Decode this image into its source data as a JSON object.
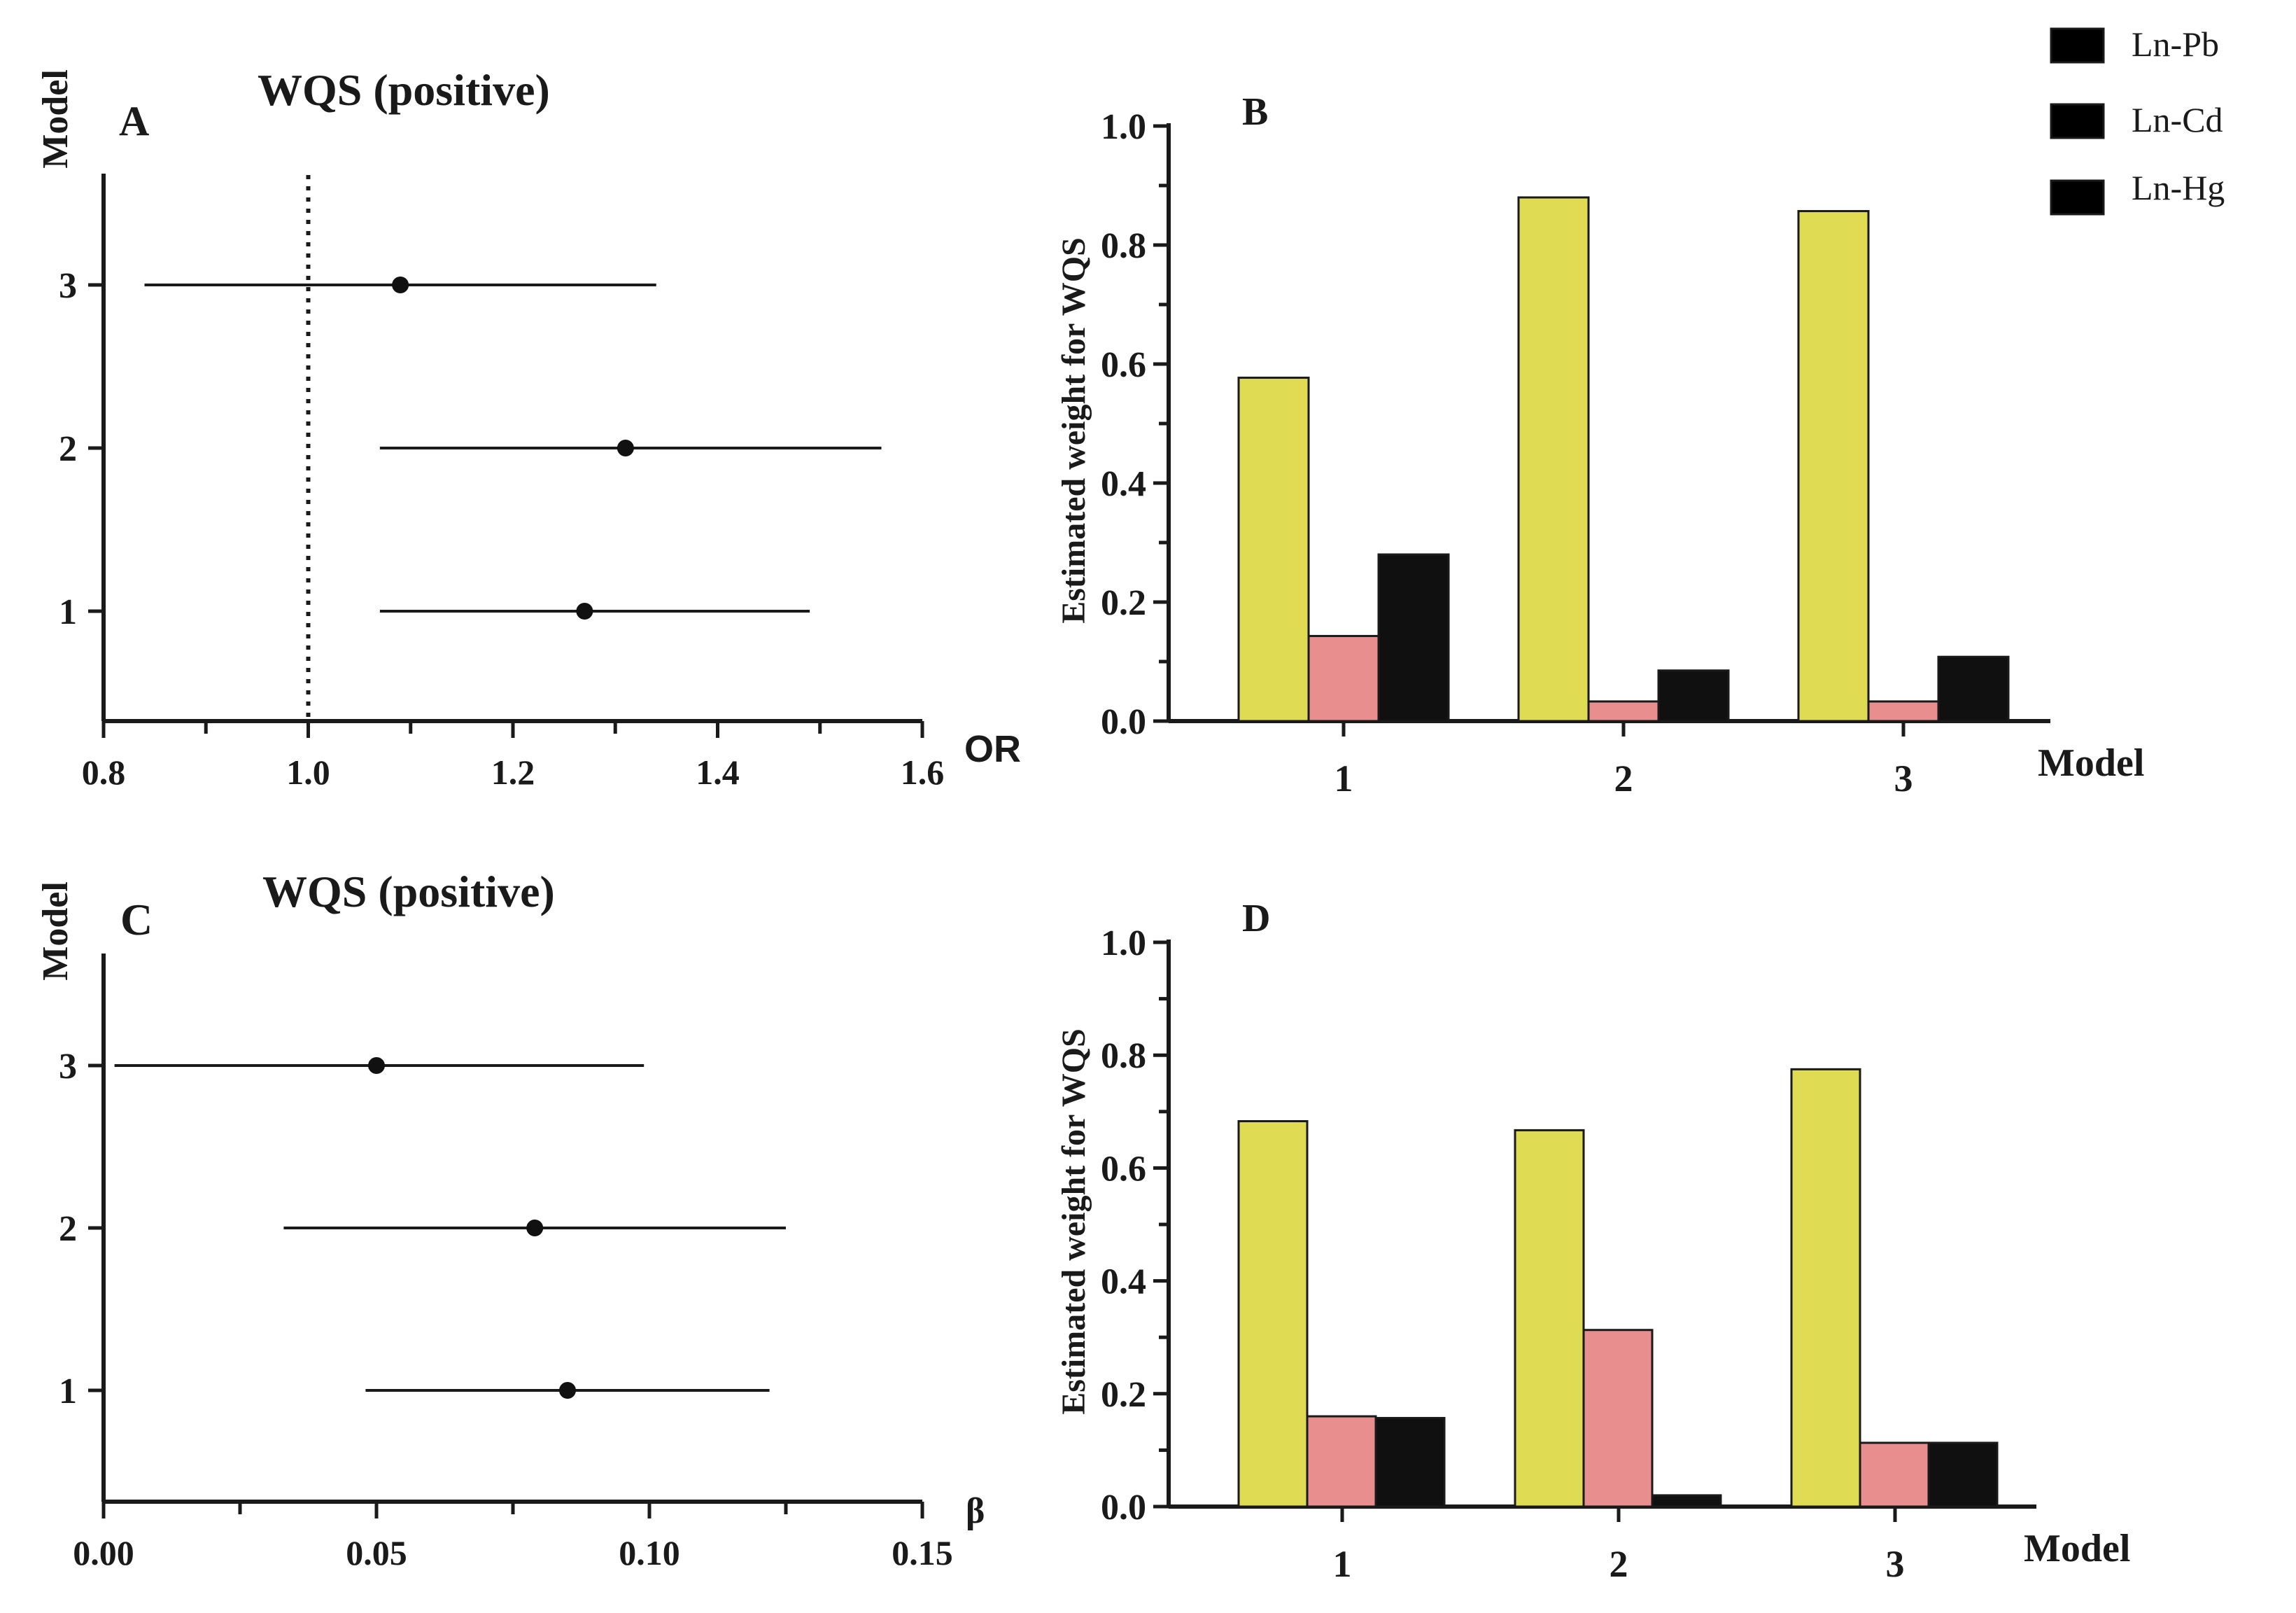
{
  "legend": [
    {
      "name": "Ln-Pb",
      "color": "#dfdc54"
    },
    {
      "name": "Ln-Cd",
      "color": "#e88e8e"
    },
    {
      "name": "Ln-Hg",
      "color": "#101010"
    }
  ],
  "chart_data": [
    {
      "panel": "A",
      "type": "scatter",
      "subtype": "forest",
      "title": "WQS (positive)",
      "xlabel": "OR",
      "ylabel": "Model",
      "xlim": [
        0.8,
        1.6
      ],
      "xticks": [
        "0.8",
        "1.0",
        "1.2",
        "1.4",
        "1.6"
      ],
      "xtick_values": [
        0.8,
        1.0,
        1.2,
        1.4,
        1.6
      ],
      "reference_line": 1.0,
      "categories": [
        "1",
        "2",
        "3"
      ],
      "estimates": [
        1.27,
        1.31,
        1.09
      ],
      "lower": [
        1.07,
        1.07,
        0.84
      ],
      "upper": [
        1.49,
        1.56,
        1.34
      ]
    },
    {
      "panel": "B",
      "type": "bar",
      "xlabel": "Model",
      "ylabel": "Estimated weight for WQS",
      "ylim": [
        0,
        1.0
      ],
      "yticks": [
        "0.0",
        "0.2",
        "0.4",
        "0.6",
        "0.8",
        "1.0"
      ],
      "ytick_values": [
        0,
        0.2,
        0.4,
        0.6,
        0.8,
        1.0
      ],
      "categories": [
        "1",
        "2",
        "3"
      ],
      "series": [
        {
          "name": "Ln-Pb",
          "values": [
            0.577,
            0.88,
            0.857
          ]
        },
        {
          "name": "Ln-Cd",
          "values": [
            0.143,
            0.033,
            0.033
          ]
        },
        {
          "name": "Ln-Hg",
          "values": [
            0.28,
            0.085,
            0.108
          ]
        }
      ]
    },
    {
      "panel": "C",
      "type": "scatter",
      "subtype": "forest",
      "title": "WQS (positive)",
      "xlabel": "β",
      "ylabel": "Model",
      "xlim": [
        0.0,
        0.15
      ],
      "xticks": [
        "0.00",
        "0.05",
        "0.10",
        "0.15"
      ],
      "xtick_values": [
        0.0,
        0.05,
        0.1,
        0.15
      ],
      "categories": [
        "1",
        "2",
        "3"
      ],
      "estimates": [
        0.085,
        0.079,
        0.05
      ],
      "lower": [
        0.048,
        0.033,
        0.002
      ],
      "upper": [
        0.122,
        0.125,
        0.099
      ]
    },
    {
      "panel": "D",
      "type": "bar",
      "xlabel": "Model",
      "ylabel": "Estimated weight for WQS",
      "ylim": [
        0,
        1.0
      ],
      "yticks": [
        "0.0",
        "0.2",
        "0.4",
        "0.6",
        "0.8",
        "1.0"
      ],
      "ytick_values": [
        0,
        0.2,
        0.4,
        0.6,
        0.8,
        1.0
      ],
      "categories": [
        "1",
        "2",
        "3"
      ],
      "series": [
        {
          "name": "Ln-Pb",
          "values": [
            0.683,
            0.667,
            0.775
          ]
        },
        {
          "name": "Ln-Cd",
          "values": [
            0.16,
            0.313,
            0.113
          ]
        },
        {
          "name": "Ln-Hg",
          "values": [
            0.157,
            0.02,
            0.113
          ]
        }
      ]
    }
  ]
}
